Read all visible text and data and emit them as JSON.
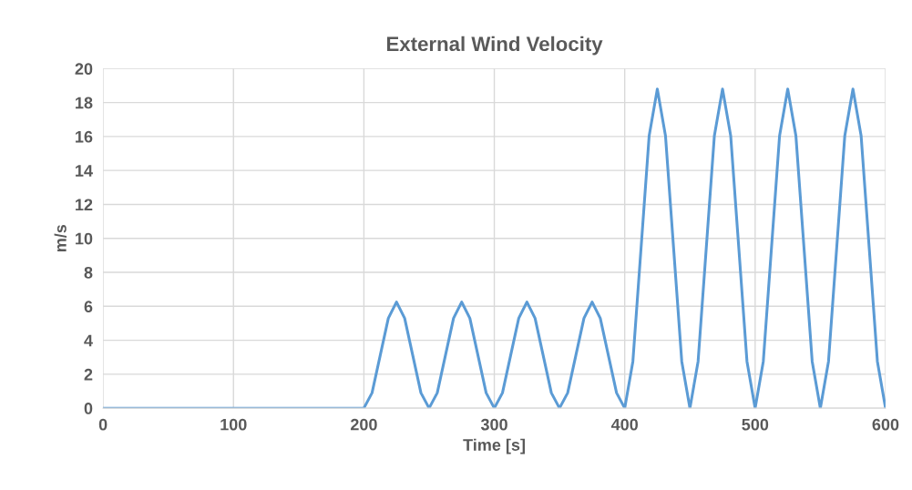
{
  "chart_data": {
    "type": "line",
    "title": "External Wind Velocity",
    "xlabel": "Time [s]",
    "ylabel": "m/s",
    "xlim": [
      0,
      600
    ],
    "xticks": [
      0,
      100,
      200,
      300,
      400,
      500,
      600
    ],
    "ylim": [
      0,
      20
    ],
    "yticks": [
      0,
      2,
      4,
      6,
      8,
      10,
      12,
      14,
      16,
      18,
      20
    ],
    "grid": true,
    "marker": "none",
    "line_style": "solid",
    "series": [
      {
        "color": "#5b9bd5",
        "x": [
          0,
          200,
          206.25,
          212.5,
          218.75,
          225,
          231.25,
          237.5,
          243.75,
          250,
          256.25,
          262.5,
          268.75,
          275,
          281.25,
          287.5,
          293.75,
          300,
          306.25,
          312.5,
          318.75,
          325,
          331.25,
          337.5,
          343.75,
          350,
          356.25,
          362.5,
          368.75,
          375,
          381.25,
          387.5,
          393.75,
          400,
          406.25,
          412.5,
          418.75,
          425,
          431.25,
          437.5,
          443.75,
          450,
          456.25,
          462.5,
          468.75,
          475,
          481.25,
          487.5,
          493.75,
          500,
          506.25,
          512.5,
          518.75,
          525,
          531.25,
          537.5,
          543.75,
          550,
          556.25,
          562.5,
          568.75,
          575,
          581.25,
          587.5,
          593.75,
          600
        ],
        "values": [
          0,
          0,
          0.9,
          3.1,
          5.3,
          6.25,
          5.3,
          3.1,
          0.9,
          0,
          0.9,
          3.1,
          5.3,
          6.25,
          5.3,
          3.1,
          0.9,
          0,
          0.9,
          3.1,
          5.3,
          6.25,
          5.3,
          3.1,
          0.9,
          0,
          0.9,
          3.1,
          5.3,
          6.25,
          5.3,
          3.1,
          0.9,
          0,
          2.75,
          9.4,
          16.05,
          18.8,
          16.05,
          9.4,
          2.75,
          0,
          2.75,
          9.4,
          16.05,
          18.8,
          16.05,
          9.4,
          2.75,
          0,
          2.75,
          9.4,
          16.05,
          18.8,
          16.05,
          9.4,
          2.75,
          0,
          2.75,
          9.4,
          16.05,
          18.8,
          16.05,
          9.4,
          2.75,
          0
        ]
      }
    ]
  }
}
